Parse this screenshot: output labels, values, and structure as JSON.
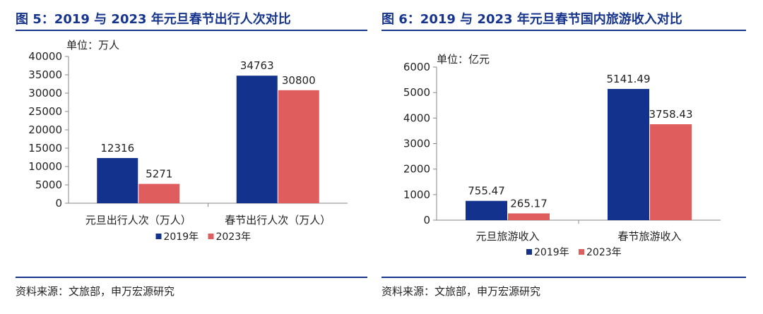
{
  "charts": [
    {
      "title": "图 5：2019 与 2023 年元旦春节出行人次对比",
      "source": "资料来源：文旅部，申万宏源研究"
    },
    {
      "title": "图 6：2019 与 2023 年元旦春节国内旅游收入对比",
      "source": "资料来源：文旅部，申万宏源研究"
    }
  ],
  "colors": {
    "title": "#17358d",
    "s2019": "#13328e",
    "s2023": "#e05d5d"
  },
  "chart_data": [
    {
      "type": "bar",
      "unit_label": "单位：万人",
      "categories": [
        "元旦出行人次（万人）",
        "春节出行人次（万人）"
      ],
      "series": [
        {
          "name": "2019年",
          "values": [
            12316,
            34763
          ]
        },
        {
          "name": "2023年",
          "values": [
            5271,
            30800
          ]
        }
      ],
      "value_labels": [
        [
          "12316",
          "34763"
        ],
        [
          "5271",
          "30800"
        ]
      ],
      "ylim": [
        0,
        40000
      ],
      "yticks": [
        0,
        5000,
        10000,
        15000,
        20000,
        25000,
        30000,
        35000,
        40000
      ],
      "legend_position": "bottom-center",
      "grid": false
    },
    {
      "type": "bar",
      "unit_label": "单位：亿元",
      "categories": [
        "元旦旅游收入",
        "春节旅游收入"
      ],
      "series": [
        {
          "name": "2019年",
          "values": [
            755.47,
            5141.49
          ]
        },
        {
          "name": "2023年",
          "values": [
            265.17,
            3758.43
          ]
        }
      ],
      "value_labels": [
        [
          "755.47",
          "5141.49"
        ],
        [
          "265.17",
          "3758.43"
        ]
      ],
      "ylim": [
        0,
        6000
      ],
      "yticks": [
        0,
        1000,
        2000,
        3000,
        4000,
        5000,
        6000
      ],
      "legend_position": "bottom-center",
      "grid": false
    }
  ]
}
